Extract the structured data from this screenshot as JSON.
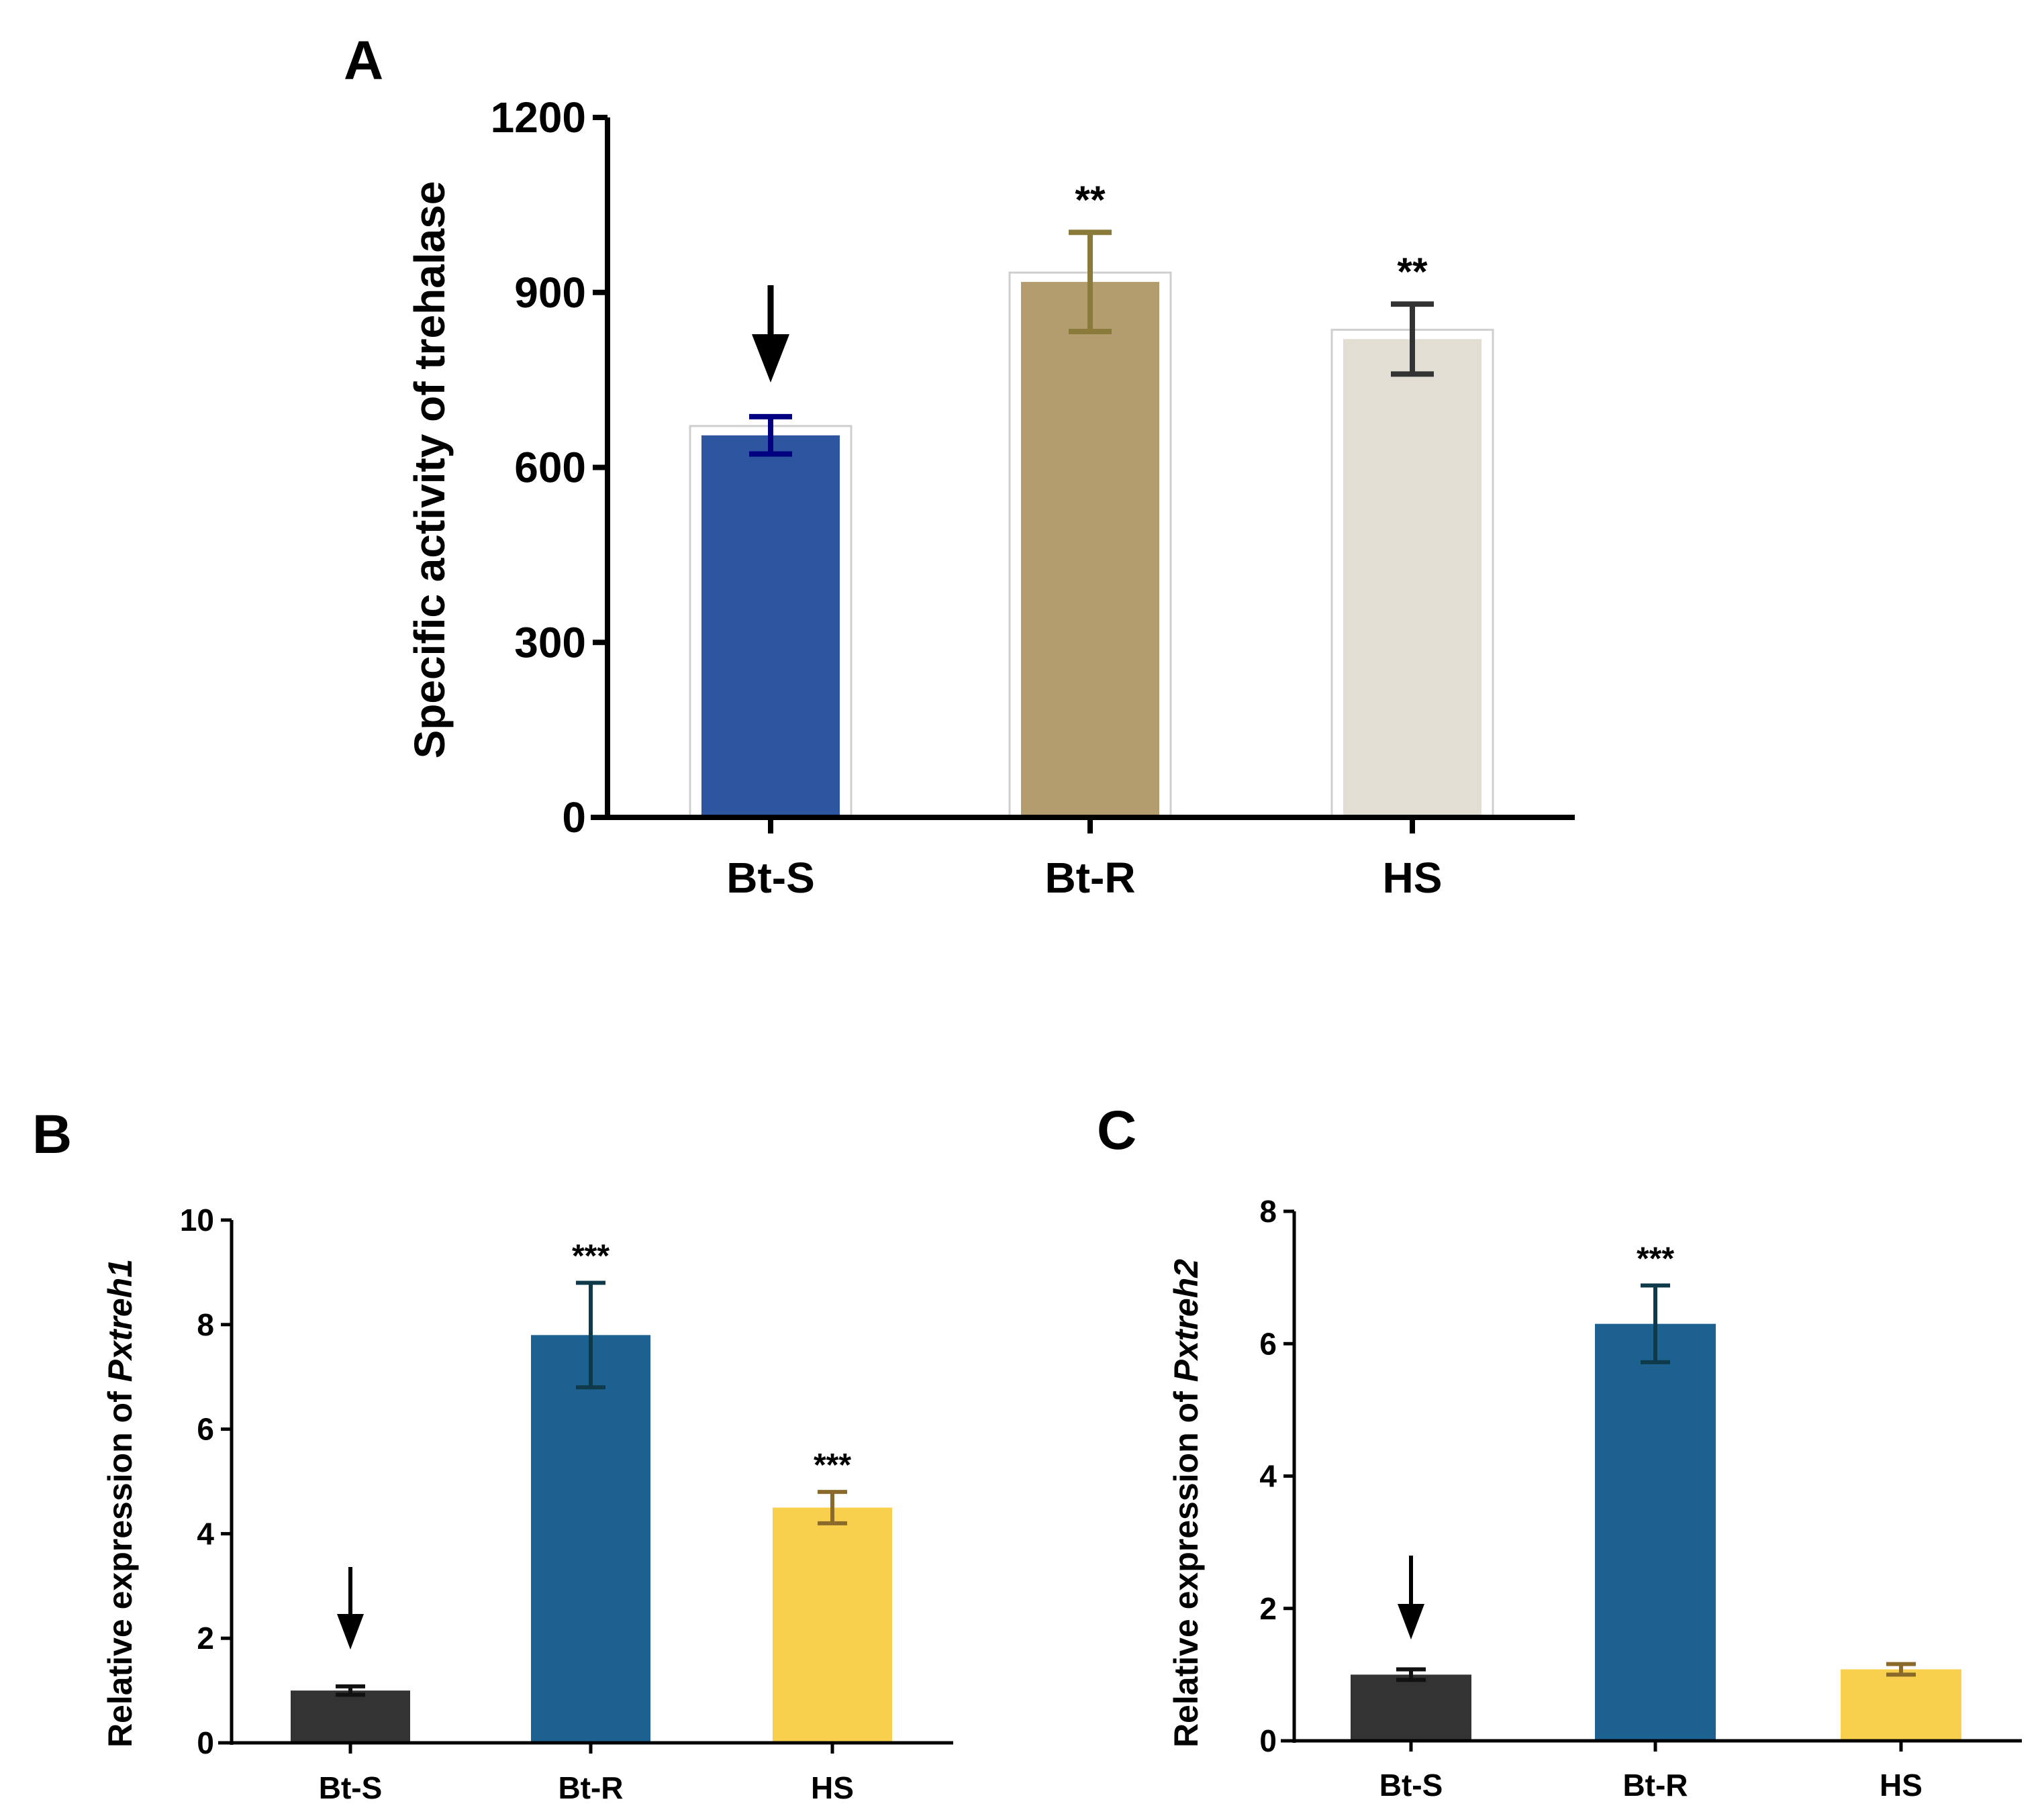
{
  "figure": {
    "panels": [
      "A",
      "B",
      "C"
    ]
  },
  "chart_data": [
    {
      "panel": "A",
      "type": "bar",
      "title": "",
      "xlabel": "",
      "ylabel": "Specific activity of trehalase",
      "ylim": [
        0,
        1200
      ],
      "yticks": [
        0,
        300,
        600,
        900,
        1200
      ],
      "categories": [
        "Bt-S",
        "Bt-R",
        "HS"
      ],
      "values": [
        655,
        918,
        820
      ],
      "errors": [
        32,
        85,
        60
      ],
      "significance": [
        "",
        "**",
        "**"
      ],
      "arrow_on": "Bt-S",
      "bar_colors": [
        "#2E56A0",
        "#B39C6E",
        "#E2DED3"
      ],
      "error_colors": [
        "#000080",
        "#8A7B3A",
        "#333333"
      ]
    },
    {
      "panel": "B",
      "type": "bar",
      "title": "",
      "xlabel": "",
      "ylabel_prefix": "Relative expression of ",
      "ylabel_gene": "Pxtreh1",
      "ylim": [
        0,
        10
      ],
      "yticks": [
        0,
        2,
        4,
        6,
        8,
        10
      ],
      "categories": [
        "Bt-S",
        "Bt-R",
        "HS"
      ],
      "values": [
        1.0,
        7.8,
        4.5
      ],
      "errors": [
        0.08,
        1.0,
        0.3
      ],
      "significance": [
        "",
        "***",
        "***"
      ],
      "arrow_on": "Bt-S",
      "bar_colors": [
        "#333333",
        "#1D6190",
        "#F9D04E"
      ],
      "error_colors": [
        "#111111",
        "#0E3A4A",
        "#8A6A2A"
      ]
    },
    {
      "panel": "C",
      "type": "bar",
      "title": "",
      "xlabel": "",
      "ylabel_prefix": "Relative expression of ",
      "ylabel_gene": "Pxtreh2",
      "ylim": [
        0,
        8
      ],
      "yticks": [
        0,
        2,
        4,
        6,
        8
      ],
      "categories": [
        "Bt-S",
        "Bt-R",
        "HS"
      ],
      "values": [
        1.0,
        6.3,
        1.08
      ],
      "errors": [
        0.08,
        0.58,
        0.08
      ],
      "significance": [
        "",
        "***",
        ""
      ],
      "arrow_on": "Bt-S",
      "bar_colors": [
        "#333333",
        "#1D6190",
        "#F9D04E"
      ],
      "error_colors": [
        "#111111",
        "#0E3A4A",
        "#8A6A2A"
      ]
    }
  ]
}
